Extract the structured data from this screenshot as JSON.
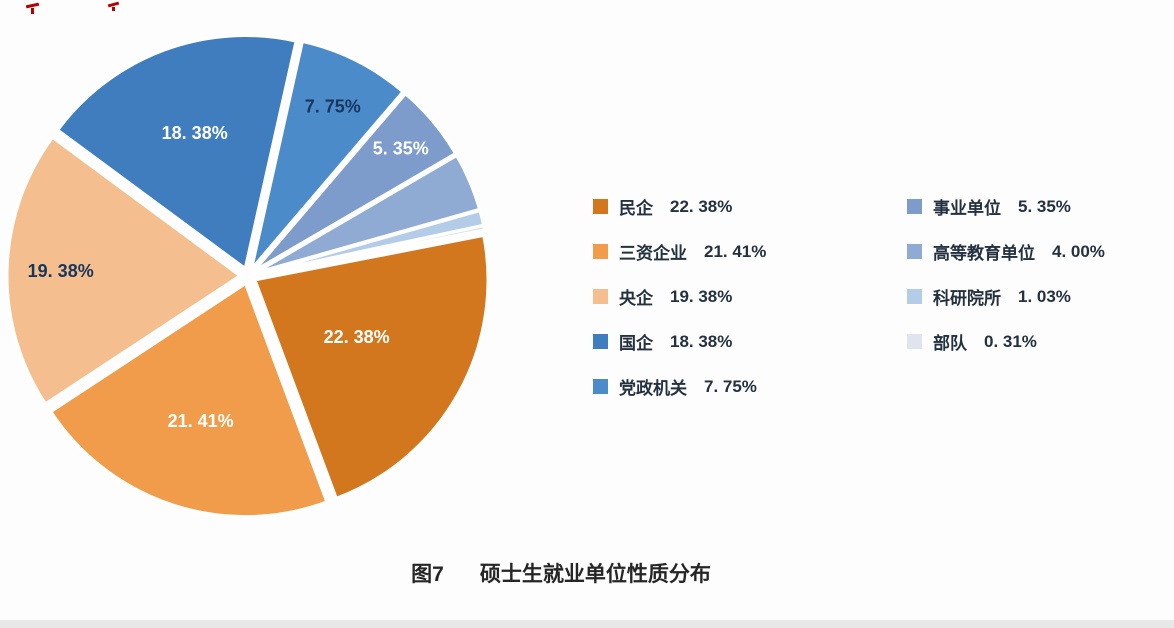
{
  "page": {
    "background": "#fdfdfd",
    "bottom_bar_color": "#e8e8e8",
    "red_mark_color": "#b80000"
  },
  "caption": {
    "prefix": "图7",
    "title": "硕士生就业单位性质分布"
  },
  "chart_data": {
    "type": "pie",
    "title": "图7 硕士生就业单位性质分布",
    "legend_position": "right, two columns",
    "start_angle_deg": 79,
    "slices": [
      {
        "name": "民企",
        "value": 22.38,
        "pct_label": "22. 38%",
        "color": "#d2771e",
        "label_color": "#ffffff",
        "label_r": 0.5,
        "show_label": true
      },
      {
        "name": "三资企业",
        "value": 21.41,
        "pct_label": "21. 41%",
        "color": "#f09c4a",
        "label_color": "#ffffff",
        "label_r": 0.62,
        "show_label": true
      },
      {
        "name": "央企",
        "value": 19.38,
        "pct_label": "19. 38%",
        "color": "#f5be8e",
        "label_color": "#17365d",
        "label_r": 0.77,
        "show_label": true
      },
      {
        "name": "国企",
        "value": 18.38,
        "pct_label": "18. 38%",
        "color": "#3f7dbe",
        "label_color": "#ffffff",
        "label_r": 0.62,
        "show_label": true
      },
      {
        "name": "党政机关",
        "value": 7.75,
        "pct_label": "7. 75%",
        "color": "#4c8bc9",
        "label_color": "#17365d",
        "label_r": 0.78,
        "show_label": true
      },
      {
        "name": "事业单位",
        "value": 5.35,
        "pct_label": "5. 35%",
        "color": "#7d9ccb",
        "label_color": "#ffffff",
        "label_r": 0.82,
        "show_label": true
      },
      {
        "name": "高等教育单位",
        "value": 4.0,
        "pct_label": "4. 00%",
        "color": "#8fabd4",
        "label_color": "#17365d",
        "label_r": 0.85,
        "show_label": false
      },
      {
        "name": "科研院所",
        "value": 1.03,
        "pct_label": "1. 03%",
        "color": "#b3cde8",
        "label_color": "#17365d",
        "label_r": 0.9,
        "show_label": false
      },
      {
        "name": "部队",
        "value": 0.31,
        "pct_label": "0. 31%",
        "color": "#dfe4ee",
        "label_color": "#17365d",
        "label_r": 0.9,
        "show_label": false
      }
    ],
    "legend_columns": [
      [
        0,
        1,
        2,
        3,
        4
      ],
      [
        5,
        6,
        7,
        8
      ]
    ]
  }
}
